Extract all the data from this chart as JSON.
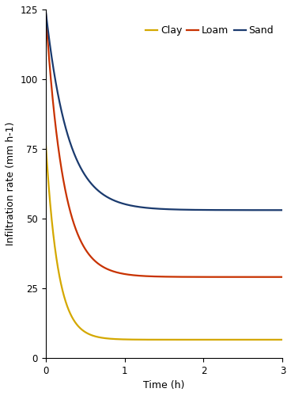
{
  "title": "",
  "xlabel": "Time (h)",
  "ylabel": "Infiltration rate (mm h-1)",
  "xlim": [
    0,
    3
  ],
  "ylim": [
    0,
    125
  ],
  "yticks": [
    0,
    25,
    50,
    75,
    100,
    125
  ],
  "xticks": [
    0,
    1,
    2,
    3
  ],
  "curves": [
    {
      "label": "Clay",
      "color": "#d4a800",
      "f0": 78,
      "fc": 6.5,
      "k": 6.5
    },
    {
      "label": "Loam",
      "color": "#c83200",
      "f0": 125,
      "fc": 29,
      "k": 4.5
    },
    {
      "label": "Sand",
      "color": "#1a3a6e",
      "f0": 125,
      "fc": 53,
      "k": 3.5
    }
  ],
  "legend_ncol": 3,
  "background_color": "#ffffff",
  "linewidth": 1.6,
  "figsize": [
    3.68,
    5.0
  ],
  "dpi": 100,
  "label_fontsize": 9,
  "tick_fontsize": 8.5
}
